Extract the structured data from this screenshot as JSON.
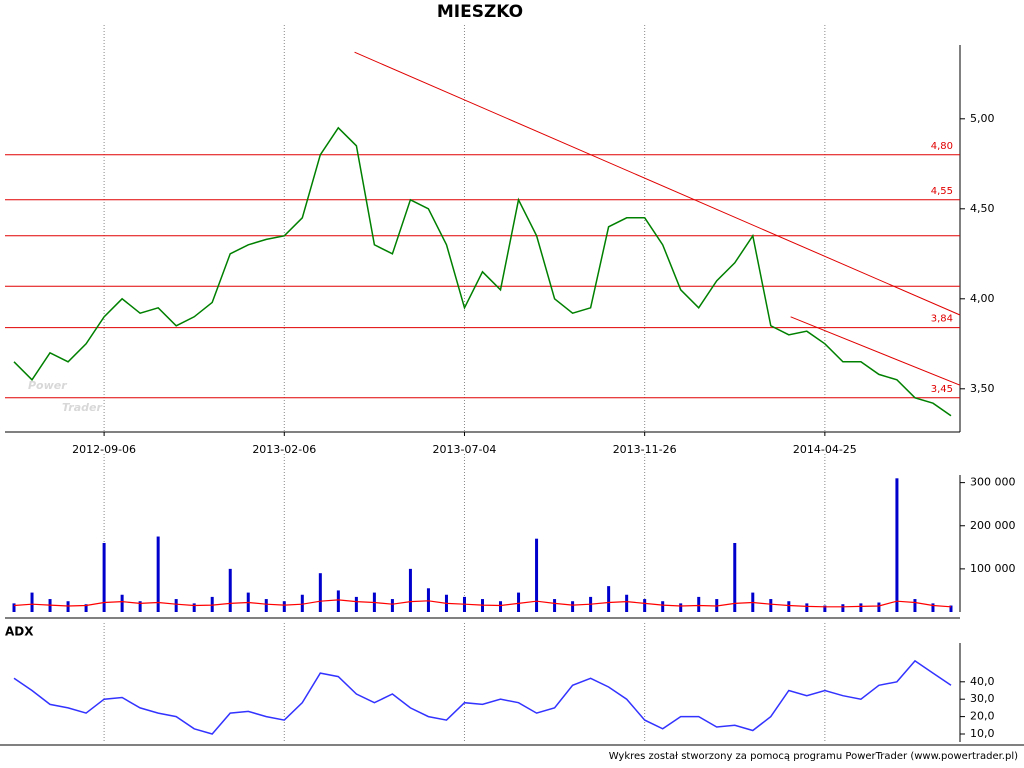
{
  "chart_data": [
    {
      "type": "line",
      "title": "MIESZKO",
      "categories": [
        null,
        null,
        null,
        null,
        null,
        "2012-09-06",
        null,
        null,
        null,
        null,
        null,
        null,
        null,
        null,
        null,
        "2013-02-06",
        null,
        null,
        null,
        null,
        null,
        null,
        null,
        null,
        null,
        "2013-07-04",
        null,
        null,
        null,
        null,
        null,
        null,
        null,
        null,
        null,
        "2013-11-26",
        null,
        null,
        null,
        null,
        null,
        null,
        null,
        null,
        null,
        "2014-04-25",
        null,
        null,
        null,
        null,
        null,
        null,
        null
      ],
      "values": [
        3.65,
        3.55,
        3.7,
        3.65,
        3.75,
        3.9,
        4.0,
        3.92,
        3.95,
        3.85,
        3.9,
        3.98,
        4.25,
        4.3,
        4.33,
        4.35,
        4.45,
        4.8,
        4.95,
        4.85,
        4.3,
        4.25,
        4.55,
        4.5,
        4.3,
        3.95,
        4.15,
        4.05,
        4.55,
        4.35,
        4.0,
        3.92,
        3.95,
        4.4,
        4.45,
        4.45,
        4.3,
        4.05,
        3.95,
        4.1,
        4.2,
        4.35,
        3.85,
        3.8,
        3.82,
        3.75,
        3.65,
        3.65,
        3.58,
        3.55,
        3.45,
        3.42,
        3.35
      ],
      "color": "#008000",
      "ylim": [
        3.26,
        5.41
      ],
      "yticks": [
        {
          "value": 3.5,
          "label": "3,50"
        },
        {
          "value": 4.0,
          "label": "4,00"
        },
        {
          "value": 4.5,
          "label": "4,50"
        },
        {
          "value": 5.0,
          "label": "5,00"
        }
      ],
      "levels": [
        {
          "value": 4.8,
          "label": "4,80"
        },
        {
          "value": 4.55,
          "label": "4,55"
        },
        4.35,
        4.07,
        {
          "value": 3.84,
          "label": "3,84"
        },
        {
          "value": 3.45,
          "label": "3,45"
        }
      ],
      "level_color": "#e00000",
      "trendlines": [
        {
          "x": [
            18.9,
            52.5
          ],
          "values": [
            5.37,
            3.91
          ]
        },
        {
          "x": [
            43.1,
            52.5
          ],
          "values": [
            3.9,
            3.52
          ]
        }
      ],
      "watermark": [
        "Power",
        "Trader"
      ],
      "grid": true
    },
    {
      "type": "bar",
      "values": [
        20000,
        45000,
        30000,
        25000,
        18000,
        160000,
        40000,
        25000,
        175000,
        30000,
        20000,
        35000,
        100000,
        45000,
        30000,
        25000,
        40000,
        90000,
        50000,
        35000,
        45000,
        30000,
        100000,
        55000,
        40000,
        35000,
        30000,
        25000,
        45000,
        170000,
        30000,
        25000,
        35000,
        60000,
        40000,
        30000,
        25000,
        20000,
        35000,
        30000,
        160000,
        45000,
        30000,
        25000,
        20000,
        15000,
        18000,
        20000,
        22000,
        310000,
        30000,
        20000,
        15000
      ],
      "color": "#0000cc",
      "average": {
        "color": "#ff0000",
        "values": [
          15000,
          18000,
          16000,
          14000,
          15000,
          22000,
          24000,
          20000,
          22000,
          18000,
          15000,
          16000,
          20000,
          22000,
          18000,
          16000,
          18000,
          25000,
          28000,
          24000,
          22000,
          18000,
          24000,
          26000,
          20000,
          18000,
          16000,
          15000,
          20000,
          25000,
          20000,
          16000,
          18000,
          22000,
          24000,
          20000,
          16000,
          14000,
          15000,
          14000,
          20000,
          22000,
          18000,
          15000,
          13000,
          12000,
          12000,
          13000,
          14000,
          25000,
          22000,
          15000,
          12000
        ]
      },
      "ylim": [
        0,
        320000
      ],
      "yticks": [
        {
          "value": 100000,
          "label": "100 000"
        },
        {
          "value": 200000,
          "label": "200 000"
        },
        {
          "value": 300000,
          "label": "300 000"
        }
      ],
      "grid": true
    },
    {
      "type": "line",
      "title": "ADX",
      "values": [
        42,
        35,
        27,
        25,
        22,
        30,
        31,
        25,
        22,
        20,
        13,
        10,
        22,
        23,
        20,
        18,
        28,
        45,
        43,
        33,
        28,
        33,
        25,
        20,
        18,
        28,
        27,
        30,
        28,
        22,
        25,
        38,
        42,
        37,
        30,
        18,
        13,
        20,
        20,
        14,
        15,
        12,
        20,
        35,
        32,
        35,
        32,
        30,
        38,
        40,
        52,
        45,
        38
      ],
      "color": "#3333ff",
      "ylim": [
        5.4,
        62.3
      ],
      "yticks": [
        {
          "value": 10,
          "label": "10,0"
        },
        {
          "value": 20,
          "label": "20,0"
        },
        {
          "value": 30,
          "label": "30,0"
        },
        {
          "value": 40,
          "label": "40,0"
        }
      ],
      "grid": true
    }
  ],
  "footer": "Wykres został stworzony za pomocą programu PowerTrader (www.powertrader.pl)"
}
